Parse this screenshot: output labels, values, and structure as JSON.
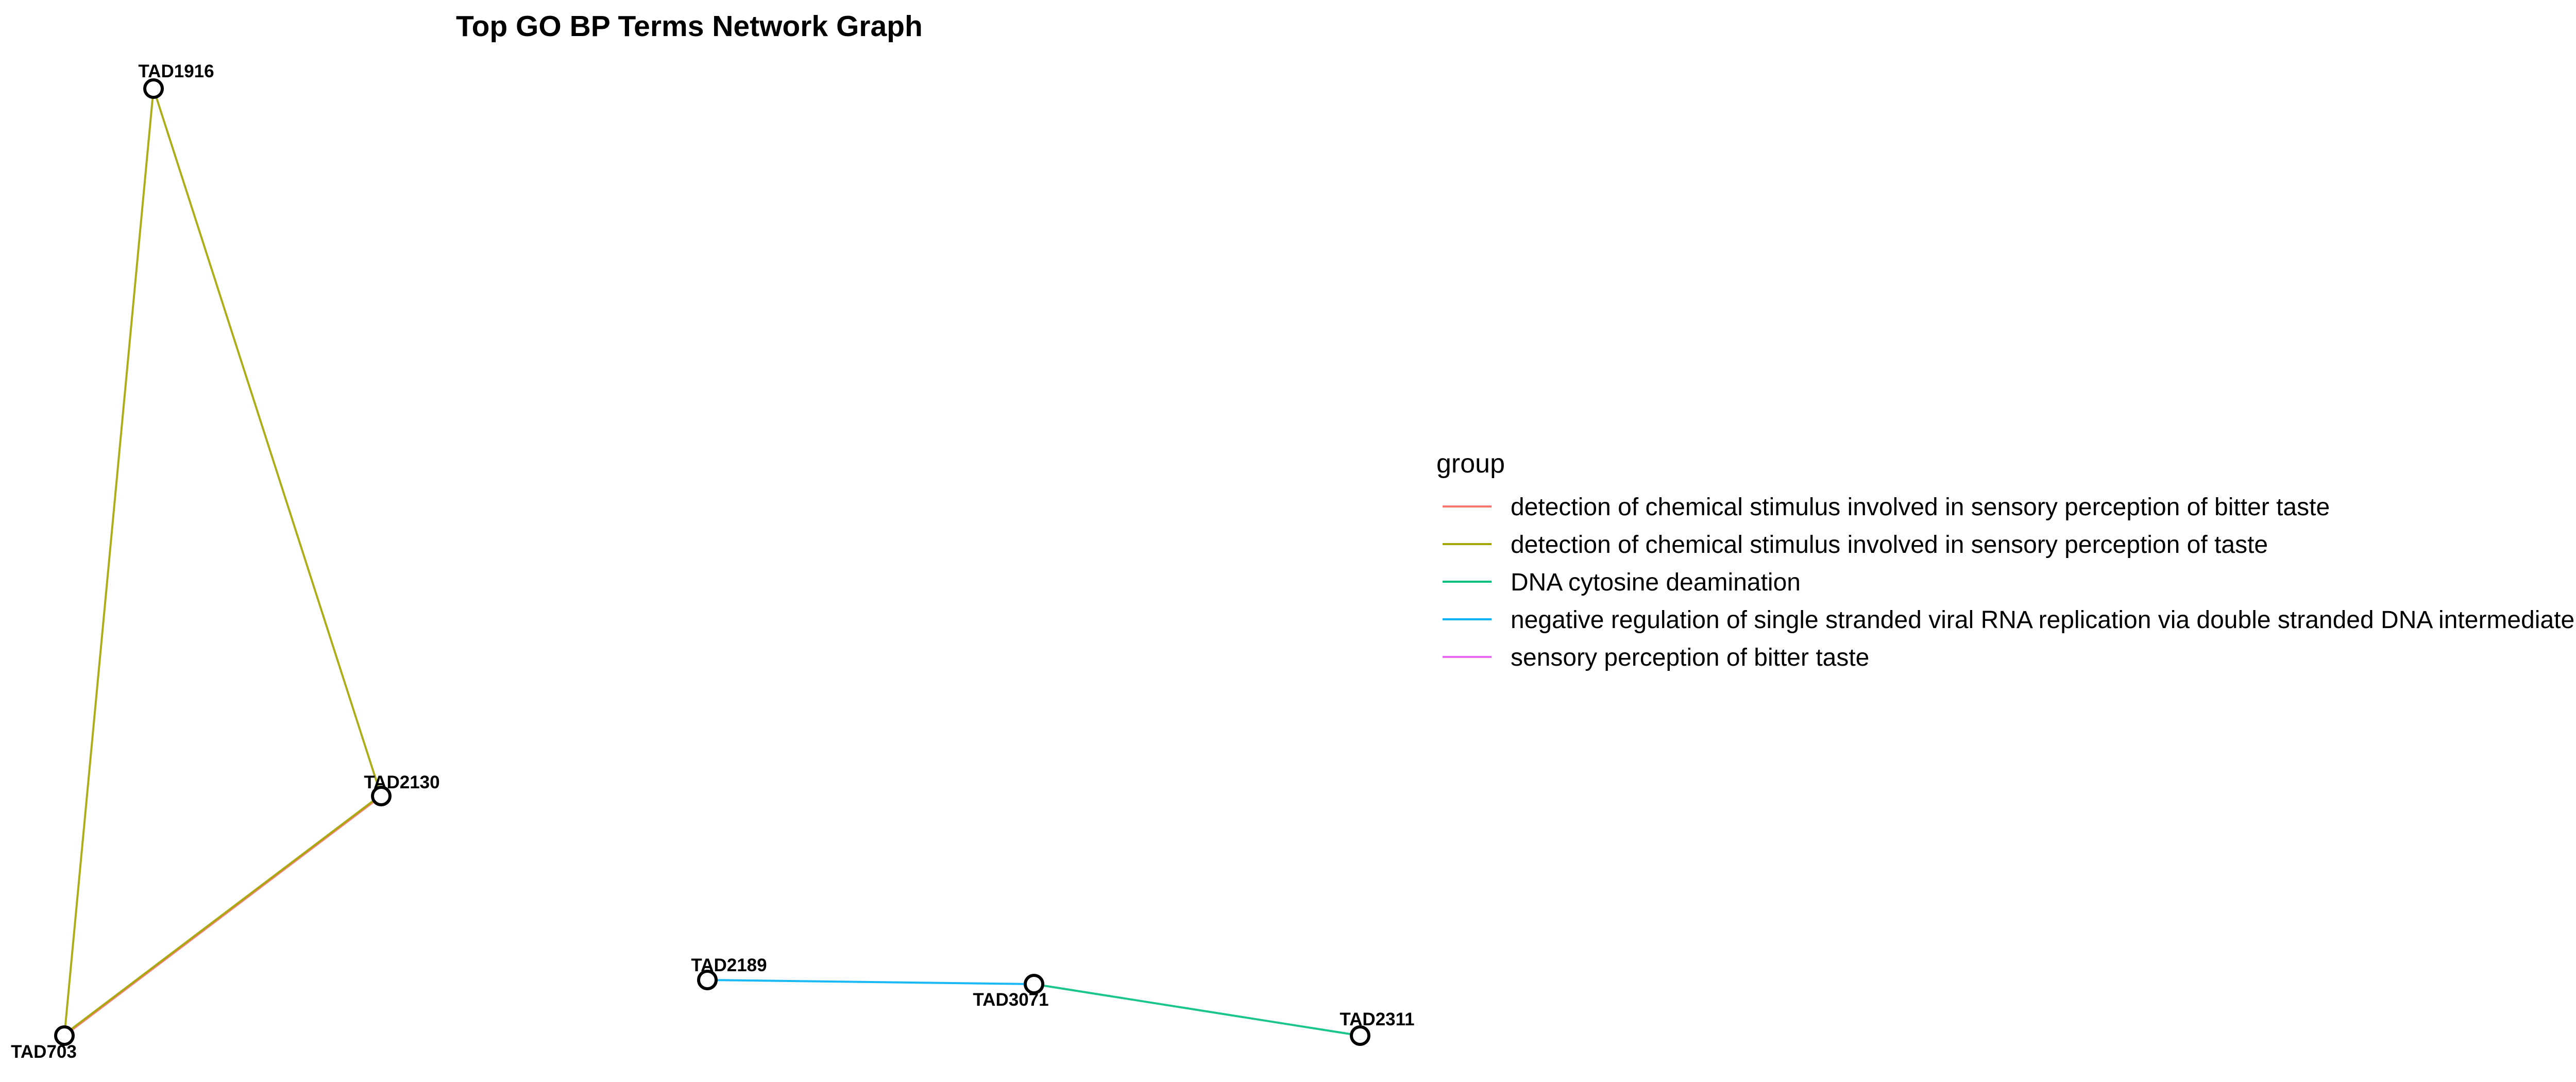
{
  "title": "Top GO BP Terms Network Graph",
  "nodes": [
    {
      "id": "TAD1916",
      "label": "TAD1916"
    },
    {
      "id": "TAD2130",
      "label": "TAD2130"
    },
    {
      "id": "TAD703",
      "label": "TAD703"
    },
    {
      "id": "TAD2189",
      "label": "TAD2189"
    },
    {
      "id": "TAD3071",
      "label": "TAD3071"
    },
    {
      "id": "TAD2311",
      "label": "TAD2311"
    }
  ],
  "edges": [
    {
      "source": "TAD1916",
      "target": "TAD703",
      "group": "detection of chemical stimulus involved in sensory perception of taste"
    },
    {
      "source": "TAD1916",
      "target": "TAD2130",
      "group": "detection of chemical stimulus involved in sensory perception of taste"
    },
    {
      "source": "TAD2130",
      "target": "TAD703",
      "group": "detection of chemical stimulus involved in sensory perception of bitter taste"
    },
    {
      "source": "TAD2130",
      "target": "TAD703",
      "group": "detection of chemical stimulus involved in sensory perception of taste"
    },
    {
      "source": "TAD2189",
      "target": "TAD3071",
      "group": "negative regulation of single stranded viral RNA replication via double stranded DNA intermediate"
    },
    {
      "source": "TAD3071",
      "target": "TAD2311",
      "group": "DNA cytosine deamination"
    }
  ],
  "legend": {
    "title": "group",
    "items": [
      {
        "label": "detection of chemical stimulus involved in sensory perception of bitter taste",
        "color": "#F8766D"
      },
      {
        "label": "detection of chemical stimulus involved in sensory perception of taste",
        "color": "#A3A500"
      },
      {
        "label": "DNA cytosine deamination",
        "color": "#00BF7D"
      },
      {
        "label": "negative regulation of single stranded viral RNA replication via double stranded DNA intermediate",
        "color": "#00B0F6"
      },
      {
        "label": "sensory perception of bitter taste",
        "color": "#E76BF3"
      }
    ]
  }
}
